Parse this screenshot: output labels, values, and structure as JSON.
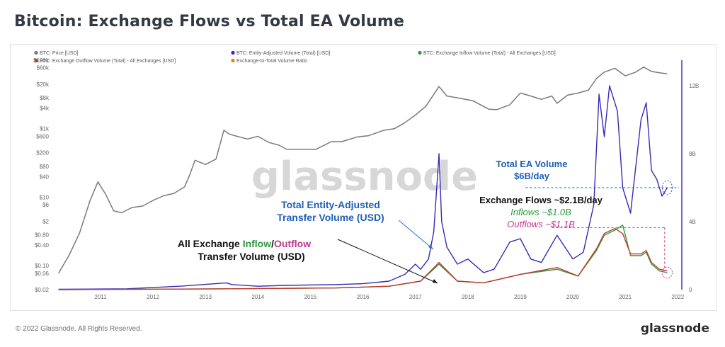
{
  "title": "Bitcoin: Exchange Flows vs Total EA Volume",
  "footer": {
    "copyright": "© 2022 Glassnode. All Rights Reserved.",
    "brand": "glassnode"
  },
  "watermark": "glassnode",
  "chart_data": {
    "type": "line",
    "legend": [
      {
        "name": "BTC: Price [USD]",
        "color": "#7a7a7a"
      },
      {
        "name": "BTC: Entity-Adjusted Volume (Total) [USD]",
        "color": "#3a2ab5"
      },
      {
        "name": "BTC: Exchange Inflow Volume (Total) - All Exchanges [USD]",
        "color": "#2e9a3e"
      },
      {
        "name": "BTC: Exchange Outflow Volume (Total) - All Exchanges [USD]",
        "color": "#c0392b"
      },
      {
        "name": "Exchange-to-Total Volume Ratio",
        "color": "#e67e22"
      }
    ],
    "x_ticks": [
      "2011",
      "2012",
      "2013",
      "2014",
      "2015",
      "2016",
      "2017",
      "2018",
      "2019",
      "2020",
      "2021",
      "2022"
    ],
    "left_axis": {
      "scale": "log",
      "ticks": [
        "$100k",
        "$60k",
        "$20k",
        "$8k",
        "$4k",
        "$1k",
        "$600",
        "$200",
        "$80",
        "$40",
        "$10",
        "$6",
        "$2",
        "$0.80",
        "$0.40",
        "$0.10",
        "$0.06",
        "$0.02"
      ]
    },
    "right_axis": {
      "ticks": [
        "12B",
        "8B",
        "4B",
        "0"
      ],
      "ylim": [
        0,
        12
      ]
    },
    "series": [
      {
        "name": "BTC: Price [USD]",
        "axis": "left",
        "color": "#7a7a7a",
        "x": [
          2010.7,
          2010.9,
          2011.1,
          2011.3,
          2011.45,
          2011.6,
          2011.75,
          2011.9,
          2012.1,
          2012.3,
          2012.5,
          2012.7,
          2012.9,
          2013.1,
          2013.2,
          2013.3,
          2013.5,
          2013.7,
          2013.85,
          2013.95,
          2014.1,
          2014.3,
          2014.5,
          2014.7,
          2014.9,
          2015.05,
          2015.3,
          2015.6,
          2015.9,
          2016.1,
          2016.4,
          2016.6,
          2016.9,
          2017.1,
          2017.3,
          2017.5,
          2017.7,
          2017.85,
          2017.95,
          2018.1,
          2018.3,
          2018.6,
          2018.9,
          2019.05,
          2019.3,
          2019.5,
          2019.7,
          2019.9,
          2020.1,
          2020.2,
          2020.4,
          2020.6,
          2020.8,
          2020.95,
          2021.1,
          2021.3,
          2021.5,
          2021.7,
          2021.85,
          2022.0,
          2022.15,
          2022.3
        ],
        "values": [
          0.06,
          0.2,
          0.9,
          8,
          28,
          12,
          4,
          3.5,
          5,
          5.5,
          8,
          11,
          13,
          20,
          45,
          120,
          90,
          130,
          900,
          700,
          600,
          500,
          600,
          400,
          330,
          250,
          250,
          250,
          420,
          420,
          580,
          620,
          900,
          1000,
          1500,
          2500,
          4500,
          10000,
          17000,
          9000,
          8000,
          6500,
          3700,
          3600,
          5000,
          11000,
          9000,
          7200,
          9000,
          5500,
          9500,
          11000,
          13500,
          29000,
          45000,
          58000,
          35000,
          45000,
          63000,
          47000,
          43000,
          40000
        ]
      },
      {
        "name": "BTC: Entity-Adjusted Volume (Total) [USD]",
        "axis": "right",
        "color": "#3a2ab5",
        "x": [
          2010.7,
          2012.0,
          2013.0,
          2013.9,
          2014.0,
          2014.5,
          2015.0,
          2016.0,
          2016.5,
          2017.0,
          2017.3,
          2017.5,
          2017.6,
          2017.75,
          2017.85,
          2017.95,
          2018.0,
          2018.1,
          2018.3,
          2018.5,
          2018.8,
          2019.0,
          2019.3,
          2019.5,
          2019.7,
          2019.9,
          2020.2,
          2020.5,
          2020.7,
          2020.9,
          2021.0,
          2021.1,
          2021.2,
          2021.35,
          2021.45,
          2021.6,
          2021.8,
          2021.9,
          2022.0,
          2022.1,
          2022.2,
          2022.3
        ],
        "values": [
          0.02,
          0.05,
          0.2,
          0.4,
          0.3,
          0.2,
          0.25,
          0.3,
          0.35,
          0.5,
          0.9,
          1.5,
          1.2,
          1.8,
          3.4,
          8.0,
          4.0,
          2.5,
          1.5,
          1.8,
          1.0,
          1.2,
          2.8,
          3.0,
          1.8,
          1.6,
          3.2,
          1.8,
          2.2,
          5.0,
          11.5,
          9.0,
          12.0,
          10.5,
          6.0,
          4.5,
          10.0,
          11.0,
          7.0,
          6.5,
          5.5,
          6.0
        ]
      },
      {
        "name": "BTC: Exchange Inflow Volume (Total) - All Exchanges [USD]",
        "axis": "right",
        "color": "#2e9a3e",
        "x": [
          2010.7,
          2014.0,
          2016.0,
          2017.0,
          2017.6,
          2017.95,
          2018.3,
          2018.8,
          2019.5,
          2020.2,
          2020.6,
          2020.95,
          2021.1,
          2021.3,
          2021.45,
          2021.6,
          2021.8,
          2021.9,
          2022.0,
          2022.15,
          2022.3
        ],
        "values": [
          0.0,
          0.05,
          0.1,
          0.2,
          0.5,
          1.5,
          0.5,
          0.4,
          0.9,
          1.2,
          0.8,
          2.3,
          3.2,
          3.5,
          3.8,
          2.0,
          2.0,
          2.2,
          1.5,
          1.1,
          1.0
        ]
      },
      {
        "name": "BTC: Exchange Outflow Volume (Total) - All Exchanges [USD]",
        "axis": "right",
        "color": "#c0392b",
        "x": [
          2010.7,
          2014.0,
          2016.0,
          2017.0,
          2017.6,
          2017.95,
          2018.3,
          2018.8,
          2019.5,
          2020.2,
          2020.6,
          2020.95,
          2021.1,
          2021.3,
          2021.45,
          2021.6,
          2021.8,
          2021.9,
          2022.0,
          2022.15,
          2022.3
        ],
        "values": [
          0.0,
          0.05,
          0.1,
          0.2,
          0.5,
          1.6,
          0.5,
          0.4,
          0.9,
          1.3,
          0.8,
          2.4,
          3.3,
          3.6,
          3.3,
          2.1,
          2.1,
          2.3,
          1.6,
          1.2,
          1.1
        ]
      }
    ],
    "annotations": [
      {
        "name": "total-ea-volume",
        "lines": [
          "Total EA Volume",
          "$6B/day"
        ],
        "color": "#1f5fb5"
      },
      {
        "name": "exchange-flows",
        "lines": [
          "Exchange Flows ~$2.1B/day"
        ],
        "color": "#111111"
      },
      {
        "name": "inflows",
        "lines": [
          "Inflows ~$1.0B"
        ],
        "color": "#2e9a3e"
      },
      {
        "name": "outflows",
        "lines": [
          "Outflows ~$1.1B"
        ],
        "color": "#c2378f"
      },
      {
        "name": "total-ea-label",
        "lines": [
          "Total Entity-Adjusted",
          "Transfer Volume (USD)"
        ],
        "color": "#1f5fb5"
      },
      {
        "name": "exchange-label",
        "parts": [
          "All Exchange ",
          "Inflow",
          "/",
          "Outflow",
          "Transfer Volume (USD)"
        ]
      }
    ]
  }
}
